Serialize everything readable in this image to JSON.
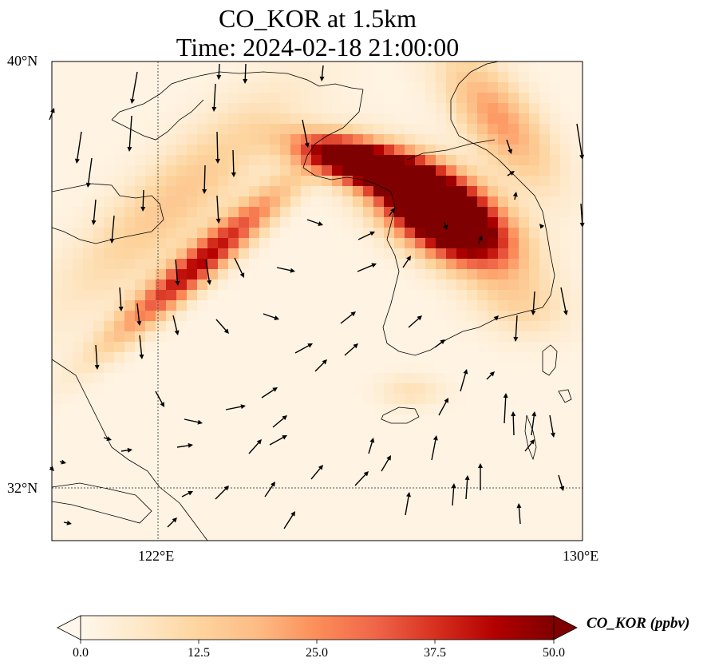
{
  "title": {
    "line1": "CO_KOR at 1.5km",
    "line2": "Time: 2024-02-18 21:00:00"
  },
  "axes": {
    "lat_labels": [
      "40°N",
      "32°N"
    ],
    "lon_labels": [
      "122°E",
      "130°E"
    ],
    "lon_range": [
      120,
      130
    ],
    "lat_range": [
      31,
      40
    ],
    "gridlines": "dotted at 122°E and 32°N"
  },
  "colorbar": {
    "title": "CO_KOR (ppbv)",
    "ticks": [
      "0.0",
      "12.5",
      "25.0",
      "37.5",
      "50.0"
    ],
    "min": 0,
    "max": 50,
    "extend": "both",
    "colormap": "OrRd",
    "colors": [
      "#fff7ec",
      "#fee8c8",
      "#fdd49e",
      "#fdbb84",
      "#fc8d59",
      "#ef6548",
      "#d7301f",
      "#b30000",
      "#7f0000"
    ]
  },
  "field_description": "Carbon monoxide from Korean sources with wind vectors; high concentration (>50 ppbv) over North Korea and Seoul region, plume streaking southwest across the Yellow Sea"
}
